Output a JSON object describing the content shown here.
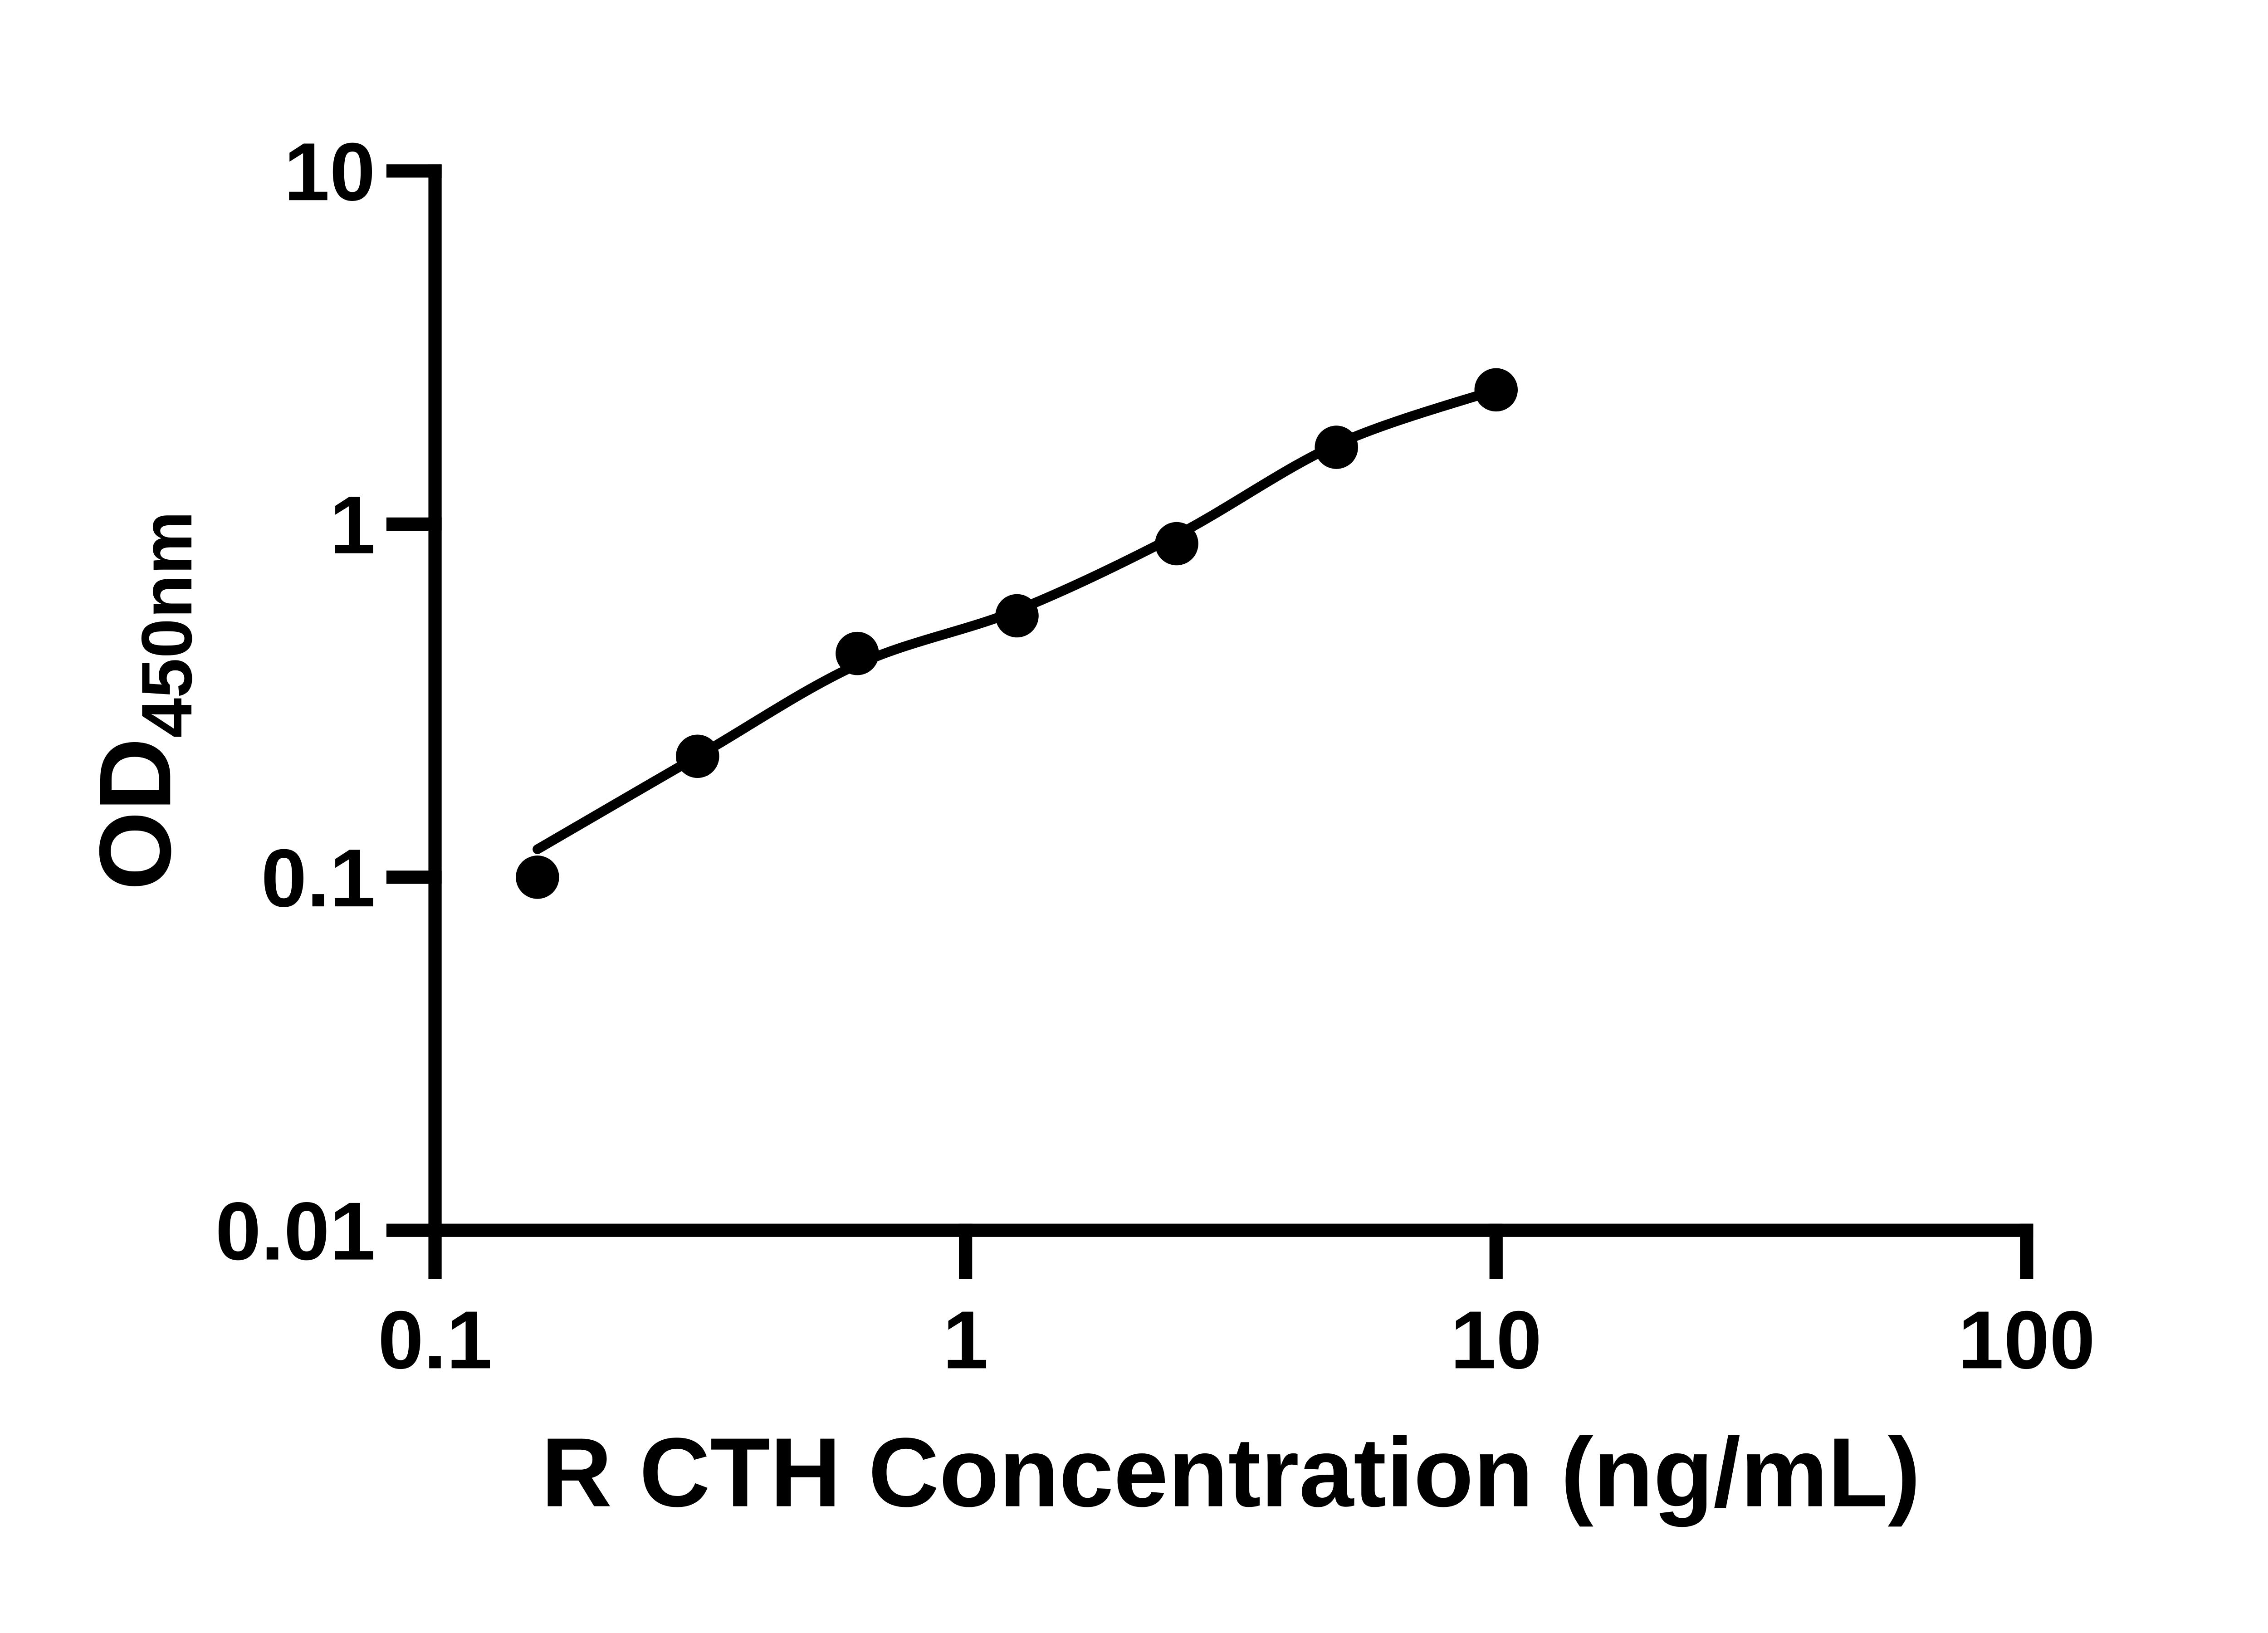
{
  "chart_data": {
    "type": "scatter",
    "title": "",
    "xlabel": "R CTH Concentration (ng/mL)",
    "ylabel": "OD",
    "ylabel_subscript": "450nm",
    "x_scale": "log10",
    "y_scale": "log10",
    "xlim": [
      0.1,
      100
    ],
    "ylim": [
      0.01,
      10
    ],
    "grid": false,
    "legend": false,
    "x_ticks": [
      {
        "value": 0.1,
        "label": "0.1"
      },
      {
        "value": 1,
        "label": "1"
      },
      {
        "value": 10,
        "label": "10"
      },
      {
        "value": 100,
        "label": "100"
      }
    ],
    "y_ticks": [
      {
        "value": 10,
        "label": "10"
      },
      {
        "value": 1,
        "label": "1"
      },
      {
        "value": 0.1,
        "label": "0.1"
      },
      {
        "value": 0.01,
        "label": "0.01"
      }
    ],
    "series": [
      {
        "name": "standard-curve-points",
        "marker": "filled-circle",
        "color": "#000000",
        "points": [
          {
            "x": 0.156,
            "od": 0.1
          },
          {
            "x": 0.3125,
            "od": 0.22
          },
          {
            "x": 0.625,
            "od": 0.43
          },
          {
            "x": 1.25,
            "od": 0.55
          },
          {
            "x": 2.5,
            "od": 0.88
          },
          {
            "x": 5,
            "od": 1.65
          },
          {
            "x": 10,
            "od": 2.4
          }
        ]
      }
    ],
    "fit_curve": {
      "name": "fitted-standard-curve",
      "color": "#000000",
      "points": [
        {
          "x": 0.156,
          "od": 0.12
        },
        {
          "x": 0.3125,
          "od": 0.22
        },
        {
          "x": 0.625,
          "od": 0.4
        },
        {
          "x": 1.25,
          "od": 0.57
        },
        {
          "x": 2.5,
          "od": 0.93
        },
        {
          "x": 5,
          "od": 1.68
        },
        {
          "x": 10,
          "od": 2.4
        }
      ]
    }
  },
  "style": {
    "background": "#ffffff",
    "ink": "#000000"
  }
}
